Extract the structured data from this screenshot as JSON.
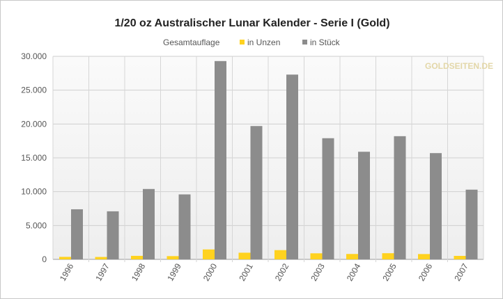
{
  "chart_data": {
    "type": "bar",
    "title": "1/20 oz Australischer Lunar Kalender - Serie I (Gold)",
    "legend_title": "Gesamtauflage",
    "legend_position": "top",
    "categories": [
      "1996",
      "1997",
      "1998",
      "1999",
      "2000",
      "2001",
      "2002",
      "2003",
      "2004",
      "2005",
      "2006",
      "2007"
    ],
    "series": [
      {
        "name": "in Unzen",
        "color": "#ffd21f",
        "values": [
          370,
          355,
          520,
          480,
          1465,
          985,
          1365,
          895,
          795,
          910,
          785,
          515
        ]
      },
      {
        "name": "in Stück",
        "color": "#8c8c8c",
        "values": [
          7400,
          7100,
          10400,
          9600,
          29300,
          19700,
          27300,
          17900,
          15900,
          18200,
          15700,
          10300
        ]
      }
    ],
    "ylim": [
      0,
      30000
    ],
    "yticks": [
      0,
      5000,
      10000,
      15000,
      20000,
      25000,
      30000
    ],
    "ytick_labels": [
      "0",
      "5.000",
      "10.000",
      "15.000",
      "20.000",
      "25.000",
      "30.000"
    ],
    "xlabel": "",
    "ylabel": "",
    "grid": true
  },
  "watermark": {
    "text": "GOLDSEITEN.DE"
  }
}
